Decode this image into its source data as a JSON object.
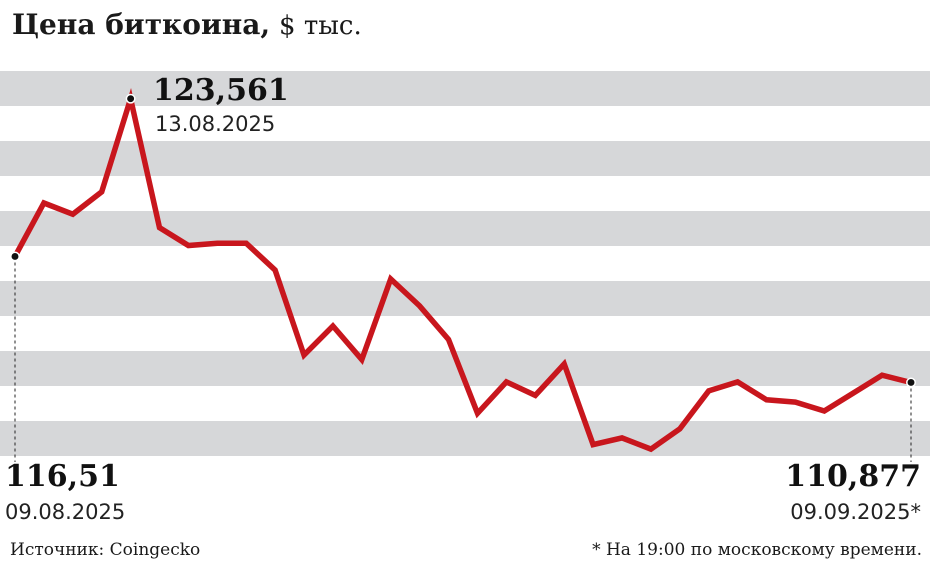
{
  "title": {
    "main": "Цена биткоина,",
    "unit": "$ тыс."
  },
  "chart_data": {
    "type": "line",
    "title": "Цена биткоина, $ тыс.",
    "xlabel": "",
    "ylabel": "",
    "ylim": [
      107.5,
      124.8
    ],
    "grid": "horizontal bands",
    "series": [
      {
        "color": "#c8161d",
        "values": [
          116.51,
          118.9,
          118.4,
          119.4,
          123.561,
          117.8,
          117.0,
          117.1,
          117.1,
          115.9,
          112.1,
          113.4,
          111.9,
          115.5,
          114.3,
          112.8,
          109.5,
          110.9,
          110.3,
          111.7,
          108.1,
          108.4,
          107.9,
          108.8,
          110.5,
          110.9,
          110.1,
          110.0,
          109.6,
          110.4,
          111.2,
          110.877
        ]
      }
    ],
    "annotations": [
      {
        "label": "max",
        "value": "123,561",
        "date": "13.08.2025"
      },
      {
        "label": "start",
        "value": "116,51",
        "date": "09.08.2025"
      },
      {
        "label": "end",
        "value": "110,877",
        "date": "09.09.2025*"
      }
    ],
    "colors": {
      "line": "#c8161d",
      "band": "#d6d7d9",
      "marker": "#111111"
    }
  },
  "footer": {
    "source": "Источник: Coingecko",
    "note": "* На 19:00 по московскому времени."
  }
}
